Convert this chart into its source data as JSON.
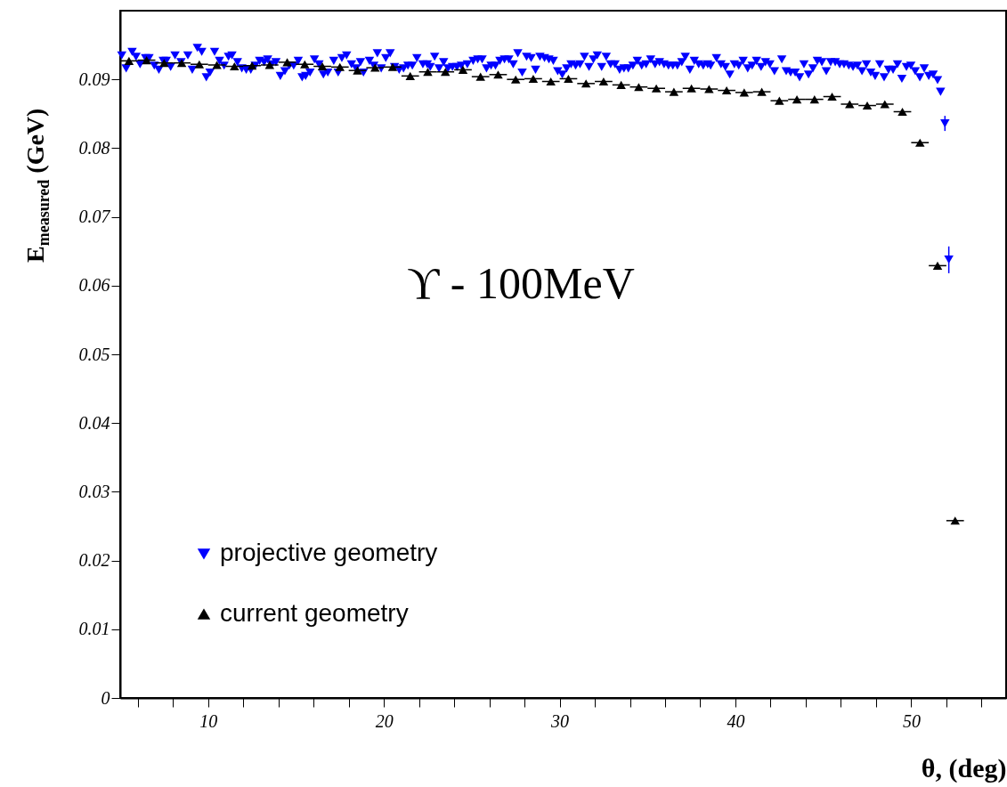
{
  "chart_data": {
    "type": "scatter",
    "xlabel": "θ, (deg)",
    "ylabel": "E$_{measured}$ (GeV)",
    "annotations": [
      "ϒ - 100MeV"
    ],
    "xlim": [
      5,
      55.4
    ],
    "ylim": [
      0,
      0.1
    ],
    "xticks": [
      {
        "value": 6,
        "label": null
      },
      {
        "value": 8,
        "label": null
      },
      10,
      {
        "value": 12,
        "label": null
      },
      {
        "value": 14,
        "label": null
      },
      {
        "value": 16,
        "label": null
      },
      {
        "value": 18,
        "label": null
      },
      20,
      {
        "value": 22,
        "label": null
      },
      {
        "value": 24,
        "label": null
      },
      {
        "value": 26,
        "label": null
      },
      {
        "value": 28,
        "label": null
      },
      30,
      {
        "value": 32,
        "label": null
      },
      {
        "value": 34,
        "label": null
      },
      {
        "value": 36,
        "label": null
      },
      {
        "value": 38,
        "label": null
      },
      40,
      {
        "value": 42,
        "label": null
      },
      {
        "value": 44,
        "label": null
      },
      {
        "value": 46,
        "label": null
      },
      {
        "value": 48,
        "label": null
      },
      50,
      {
        "value": 52,
        "label": null
      },
      {
        "value": 54,
        "label": null
      }
    ],
    "yticks": [
      0,
      0.01,
      0.02,
      0.03,
      0.04,
      0.05,
      0.06,
      0.07,
      0.08,
      0.09
    ],
    "grid": false,
    "legend": "bottom left",
    "series": [
      {
        "name": "projective geometry",
        "color": "#0000ff",
        "marker": "triangle-down",
        "x": [
          5.09,
          5.34,
          5.68,
          5.9,
          6.13,
          6.44,
          6.64,
          6.94,
          7.2,
          7.45,
          7.62,
          7.87,
          8.12,
          8.46,
          8.85,
          9.1,
          9.39,
          9.64,
          9.9,
          10.11,
          10.37,
          10.65,
          10.91,
          11.16,
          11.36,
          11.67,
          11.92,
          12.17,
          12.43,
          12.68,
          12.93,
          13.19,
          13.39,
          13.61,
          13.86,
          14.11,
          14.37,
          14.62,
          14.87,
          15.13,
          15.35,
          15.55,
          15.8,
          16.05,
          16.31,
          16.56,
          16.81,
          17.15,
          17.4,
          17.61,
          17.88,
          18.16,
          18.42,
          18.67,
          18.84,
          19.18,
          19.43,
          19.63,
          19.85,
          20.11,
          20.36,
          20.61,
          20.87,
          21.12,
          21.37,
          21.62,
          21.88,
          22.22,
          22.47,
          22.64,
          22.89,
          23.14,
          23.4,
          23.65,
          23.9,
          24.16,
          24.41,
          24.75,
          25.08,
          25.34,
          25.59,
          25.84,
          26.1,
          26.35,
          26.6,
          26.86,
          27.11,
          27.36,
          27.62,
          27.87,
          28.12,
          28.38,
          28.63,
          28.88,
          29.14,
          29.39,
          29.64,
          29.89,
          30.15,
          30.4,
          30.65,
          30.91,
          31.16,
          31.41,
          31.67,
          31.92,
          32.14,
          32.39,
          32.65,
          32.9,
          33.15,
          33.41,
          33.66,
          33.91,
          34.17,
          34.42,
          34.67,
          34.92,
          35.18,
          35.43,
          35.68,
          35.94,
          36.19,
          36.44,
          36.7,
          36.95,
          37.15,
          37.41,
          37.66,
          37.91,
          38.17,
          38.42,
          38.59,
          38.92,
          39.18,
          39.43,
          39.68,
          39.94,
          40.19,
          40.44,
          40.7,
          40.95,
          41.2,
          41.46,
          41.71,
          41.96,
          42.22,
          42.64,
          42.89,
          43.14,
          43.4,
          43.65,
          43.9,
          44.16,
          44.41,
          44.66,
          44.92,
          45.17,
          45.42,
          45.68,
          45.93,
          46.18,
          46.45,
          46.69,
          46.94,
          47.2,
          47.45,
          47.7,
          47.95,
          48.21,
          48.46,
          48.71,
          48.97,
          49.22,
          49.47,
          49.73,
          49.98,
          50.23,
          50.49,
          50.74,
          51.0,
          51.25,
          51.5,
          51.67,
          51.92,
          52.14
        ],
        "values": [
          0.0935,
          0.0916,
          0.094,
          0.0933,
          0.0922,
          0.0931,
          0.0931,
          0.092,
          0.0914,
          0.0927,
          0.0927,
          0.0918,
          0.0935,
          0.0925,
          0.0935,
          0.0914,
          0.0946,
          0.094,
          0.0903,
          0.091,
          0.094,
          0.0927,
          0.092,
          0.0933,
          0.0935,
          0.0925,
          0.0916,
          0.0914,
          0.0914,
          0.092,
          0.0927,
          0.0925,
          0.0929,
          0.0922,
          0.0925,
          0.0905,
          0.0912,
          0.092,
          0.092,
          0.0927,
          0.0903,
          0.0905,
          0.091,
          0.0929,
          0.0922,
          0.0907,
          0.091,
          0.0927,
          0.091,
          0.0931,
          0.0935,
          0.0922,
          0.0916,
          0.0925,
          0.091,
          0.0927,
          0.092,
          0.0938,
          0.0916,
          0.0931,
          0.0938,
          0.0918,
          0.0914,
          0.0916,
          0.092,
          0.092,
          0.0931,
          0.0922,
          0.0922,
          0.0918,
          0.0933,
          0.0916,
          0.0925,
          0.0916,
          0.0918,
          0.0918,
          0.092,
          0.0922,
          0.0927,
          0.0929,
          0.0929,
          0.0916,
          0.092,
          0.092,
          0.0927,
          0.0929,
          0.0929,
          0.0922,
          0.0938,
          0.091,
          0.0933,
          0.0931,
          0.0914,
          0.0933,
          0.0931,
          0.0929,
          0.0927,
          0.0912,
          0.0907,
          0.0916,
          0.0922,
          0.092,
          0.0922,
          0.0933,
          0.0918,
          0.0929,
          0.0935,
          0.0918,
          0.0933,
          0.0922,
          0.0922,
          0.0914,
          0.0916,
          0.0916,
          0.092,
          0.0927,
          0.092,
          0.0922,
          0.0929,
          0.0922,
          0.0925,
          0.0922,
          0.092,
          0.092,
          0.092,
          0.0925,
          0.0933,
          0.0914,
          0.0927,
          0.0922,
          0.092,
          0.0922,
          0.092,
          0.0931,
          0.0922,
          0.0918,
          0.0907,
          0.0922,
          0.092,
          0.0927,
          0.0916,
          0.092,
          0.0927,
          0.0918,
          0.0925,
          0.0922,
          0.0912,
          0.0929,
          0.0912,
          0.091,
          0.091,
          0.0903,
          0.0922,
          0.0907,
          0.0916,
          0.0927,
          0.0925,
          0.0912,
          0.0925,
          0.0925,
          0.0922,
          0.0922,
          0.092,
          0.0918,
          0.092,
          0.0912,
          0.0922,
          0.091,
          0.0905,
          0.0922,
          0.0903,
          0.0914,
          0.0914,
          0.0922,
          0.0901,
          0.0918,
          0.092,
          0.0912,
          0.0903,
          0.0916,
          0.0905,
          0.0907,
          0.0899,
          0.0882,
          0.0836,
          0.0638
        ],
        "errors": [
          null,
          null,
          null,
          null,
          null,
          null,
          null,
          null,
          null,
          null,
          null,
          null,
          null,
          null,
          null,
          null,
          null,
          null,
          null,
          null,
          null,
          null,
          null,
          null,
          null,
          null,
          null,
          null,
          null,
          null,
          null,
          null,
          null,
          null,
          null,
          null,
          null,
          null,
          null,
          null,
          null,
          null,
          null,
          null,
          null,
          null,
          null,
          null,
          null,
          null,
          null,
          null,
          null,
          null,
          null,
          null,
          null,
          null,
          null,
          null,
          null,
          null,
          null,
          null,
          null,
          null,
          null,
          null,
          null,
          null,
          null,
          null,
          null,
          null,
          null,
          null,
          null,
          null,
          null,
          null,
          null,
          null,
          null,
          null,
          null,
          null,
          null,
          null,
          null,
          null,
          null,
          null,
          null,
          null,
          null,
          null,
          null,
          null,
          null,
          null,
          null,
          null,
          null,
          null,
          null,
          null,
          null,
          null,
          null,
          null,
          null,
          null,
          null,
          null,
          null,
          null,
          null,
          null,
          null,
          null,
          null,
          null,
          null,
          null,
          null,
          null,
          null,
          null,
          null,
          null,
          null,
          null,
          null,
          null,
          null,
          null,
          null,
          null,
          null,
          null,
          null,
          null,
          null,
          null,
          null,
          null,
          null,
          null,
          null,
          null,
          null,
          null,
          null,
          null,
          null,
          null,
          null,
          null,
          null,
          null,
          null,
          null,
          null,
          null,
          null,
          null,
          null,
          null,
          null,
          null,
          null,
          null,
          null,
          null,
          null,
          null,
          null,
          null,
          null,
          null,
          null,
          null,
          null,
          null,
          [
            0.0825,
            0.0847
          ],
          [
            0.0618,
            0.0657
          ]
        ]
      },
      {
        "name": "current geometry",
        "color": "#000000",
        "marker": "triangle",
        "x": [
          5.5,
          6.5,
          7.5,
          8.5,
          9.5,
          10.5,
          11.5,
          12.5,
          13.5,
          14.5,
          15.5,
          16.5,
          17.5,
          18.5,
          19.5,
          20.5,
          21.5,
          22.5,
          23.5,
          24.5,
          25.5,
          26.5,
          27.5,
          28.5,
          29.5,
          30.5,
          31.5,
          32.5,
          33.5,
          34.5,
          35.5,
          36.5,
          37.5,
          38.5,
          39.5,
          40.5,
          41.5,
          42.5,
          43.5,
          44.5,
          45.5,
          46.5,
          47.5,
          48.5,
          49.5,
          50.5,
          51.5,
          52.5
        ],
        "values": [
          0.0927,
          0.0928,
          0.0924,
          0.0924,
          0.0922,
          0.0921,
          0.0919,
          0.092,
          0.0921,
          0.0925,
          0.0922,
          0.0919,
          0.0918,
          0.0913,
          0.0917,
          0.0918,
          0.0905,
          0.0911,
          0.0911,
          0.0914,
          0.0904,
          0.0907,
          0.09,
          0.0901,
          0.0897,
          0.0901,
          0.0894,
          0.0897,
          0.0892,
          0.0889,
          0.0887,
          0.0882,
          0.0887,
          0.0886,
          0.0884,
          0.0881,
          0.0882,
          0.0869,
          0.0871,
          0.0871,
          0.0875,
          0.0864,
          0.0862,
          0.0864,
          0.0853,
          0.0808,
          0.0629,
          0.0258
        ],
        "xerrors": [
          0.5,
          0.5,
          0.5,
          0.5,
          0.5,
          0.5,
          0.5,
          0.5,
          0.5,
          0.5,
          0.5,
          0.5,
          0.5,
          0.5,
          0.5,
          0.5,
          0.5,
          0.5,
          0.5,
          0.5,
          0.5,
          0.5,
          0.5,
          0.5,
          0.5,
          0.5,
          0.5,
          0.5,
          0.5,
          0.5,
          0.5,
          0.5,
          0.5,
          0.5,
          0.5,
          0.5,
          0.5,
          0.5,
          0.5,
          0.5,
          0.5,
          0.5,
          0.5,
          0.5,
          0.5,
          0.5,
          0.5,
          0.5
        ]
      }
    ]
  }
}
